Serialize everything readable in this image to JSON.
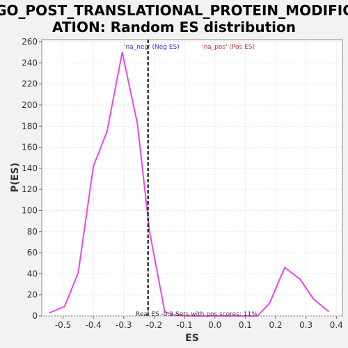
{
  "chart_data": {
    "type": "line",
    "title_lines": [
      "GO_POST_TRANSLATIONAL_PROTEIN_MODIFIC",
      "ATION: Random ES distribution"
    ],
    "xlabel": "ES",
    "ylabel": "P(ES)",
    "xlim": [
      -0.57,
      0.42
    ],
    "ylim": [
      0,
      262
    ],
    "x_ticks": [
      -0.5,
      -0.4,
      -0.3,
      -0.2,
      -0.1,
      0.0,
      0.1,
      0.2,
      0.3,
      0.4
    ],
    "x_tick_labels": [
      "-0.5",
      "-0.4",
      "-0.3",
      "-0.2",
      "-0.1",
      "0.0",
      "0.1",
      "0.2",
      "0.3",
      "0.4"
    ],
    "y_ticks": [
      0,
      20,
      40,
      60,
      80,
      100,
      120,
      140,
      160,
      180,
      200,
      220,
      240,
      260
    ],
    "y_tick_labels": [
      "0",
      "20",
      "40",
      "60",
      "80",
      "100",
      "120",
      "140",
      "160",
      "180",
      "200",
      "220",
      "240",
      "260"
    ],
    "grid": true,
    "series": [
      {
        "color": "#ee44ee",
        "x": [
          -0.545,
          -0.495,
          -0.45,
          -0.4,
          -0.355,
          -0.305,
          -0.255,
          -0.215,
          -0.165,
          -0.135,
          -0.09,
          -0.045,
          0.0,
          0.045,
          0.09,
          0.14,
          0.18,
          0.23,
          0.28,
          0.325,
          0.375
        ],
        "y": [
          3,
          9,
          41,
          142,
          175,
          250,
          182,
          80,
          4,
          1,
          0,
          0,
          0,
          0,
          0,
          0,
          12,
          46,
          35,
          16,
          4
        ]
      }
    ],
    "real_es_line": {
      "x": -0.22,
      "color": "#000000"
    },
    "legend": [
      {
        "label": "'na_neg' (Neg ES)",
        "color": "#3333cc"
      },
      {
        "label": "'na_pos' (Pos ES)",
        "color": "#cc3333"
      }
    ],
    "annotation": "Real ES -0.2 Sets with pos scores: 11%"
  }
}
